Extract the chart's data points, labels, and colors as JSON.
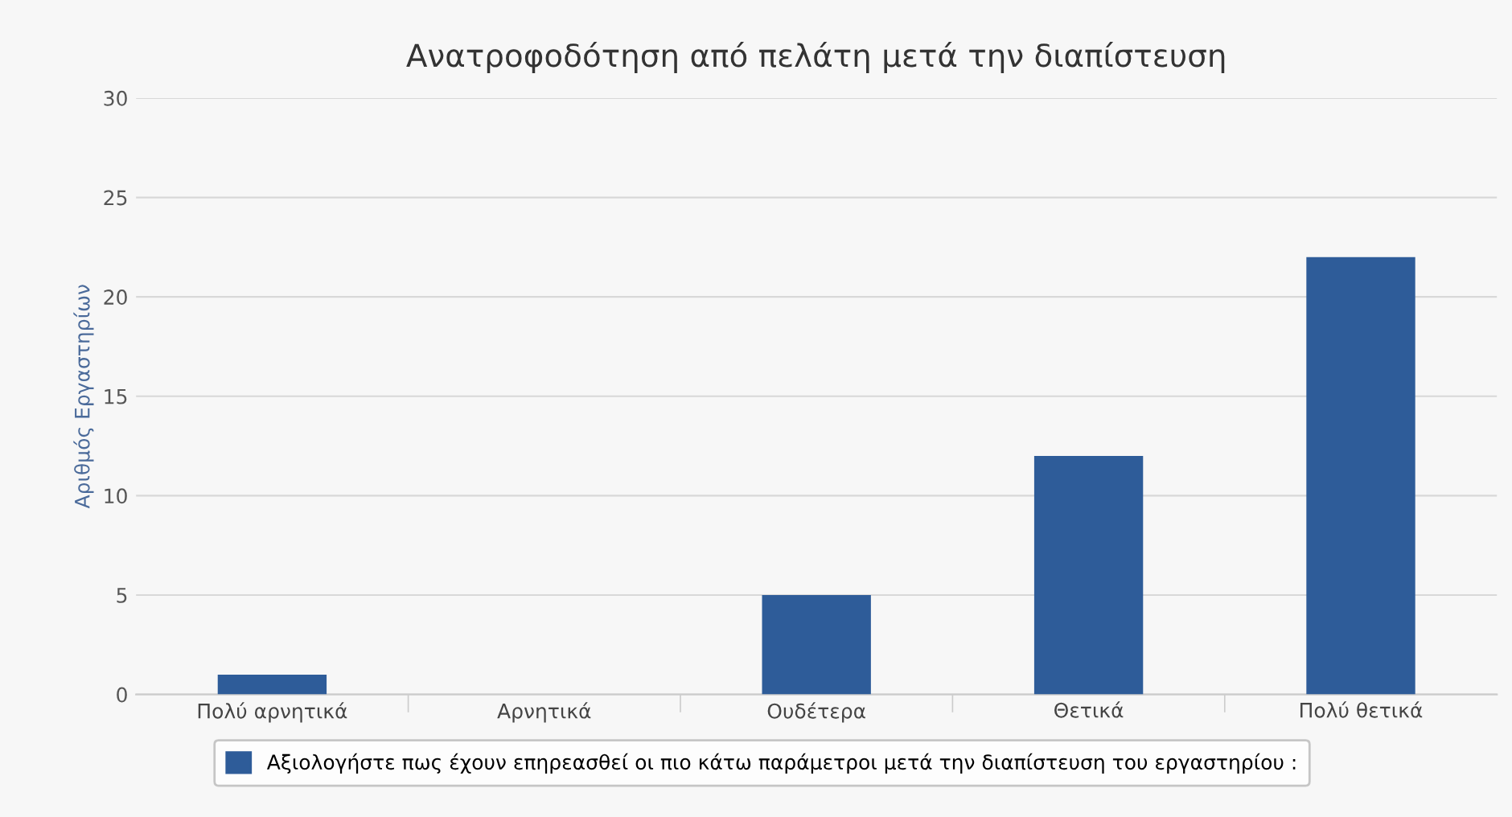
{
  "chart_data": {
    "type": "bar",
    "title": "Ανατροφοδότηση από πελάτη μετά την διαπίστευση",
    "ylabel": "Αριθμός Εργαστηρίων",
    "categories": [
      "Πολύ αρνητικά",
      "Αρνητικά",
      "Ουδέτερα",
      "Θετικά",
      "Πολύ θετικά"
    ],
    "series": [
      {
        "name": "Αξιολογήστε πως έχουν επηρεασθεί οι πιο κάτω παράμετροι μετά την διαπίστευση του εργαστηρίου :",
        "color": "#2e5c99",
        "values": [
          1,
          0,
          5,
          12,
          22
        ]
      }
    ],
    "ylim": [
      0,
      30
    ],
    "yticks": [
      0,
      5,
      10,
      15,
      20,
      25,
      30
    ],
    "grid": "y",
    "legend": "bottom"
  }
}
